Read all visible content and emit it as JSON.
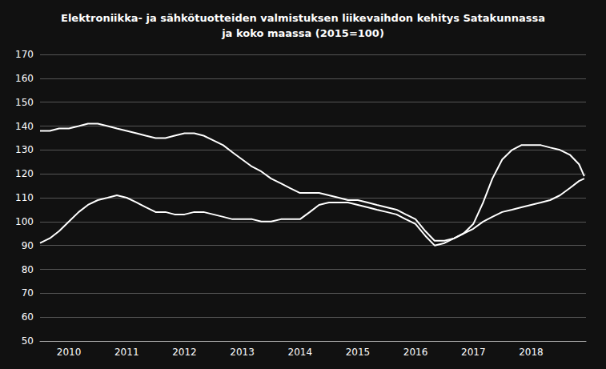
{
  "chart_data": {
    "type": "line",
    "title": "Elektroniikka- ja sähkötuotteiden valmistuksen liikevaihdon kehitys Satakunnassa\nja koko maassa (2015=100)",
    "x": [
      2009.5,
      2009.67,
      2009.83,
      2010.0,
      2010.17,
      2010.33,
      2010.5,
      2010.67,
      2010.83,
      2011.0,
      2011.17,
      2011.33,
      2011.5,
      2011.67,
      2011.83,
      2012.0,
      2012.17,
      2012.33,
      2012.5,
      2012.67,
      2012.83,
      2013.0,
      2013.17,
      2013.33,
      2013.5,
      2013.67,
      2013.83,
      2014.0,
      2014.17,
      2014.33,
      2014.5,
      2014.67,
      2014.83,
      2015.0,
      2015.17,
      2015.33,
      2015.5,
      2015.67,
      2015.83,
      2016.0,
      2016.17,
      2016.33,
      2016.5,
      2016.67,
      2016.83,
      2017.0,
      2017.17,
      2017.33,
      2017.5,
      2017.67,
      2017.83,
      2018.0,
      2018.17,
      2018.33,
      2018.5,
      2018.67,
      2018.83,
      2018.92
    ],
    "series": [
      {
        "color": "#ffffff",
        "values": [
          91,
          93,
          96,
          100,
          104,
          107,
          109,
          110,
          111,
          110,
          108,
          106,
          104,
          104,
          103,
          103,
          104,
          104,
          103,
          102,
          101,
          101,
          101,
          100,
          100,
          101,
          101,
          101,
          104,
          107,
          108,
          108,
          108,
          107,
          106,
          105,
          104,
          103,
          101,
          99,
          94,
          90,
          91,
          93,
          95,
          97,
          100,
          102,
          104,
          105,
          106,
          107,
          108,
          109,
          111,
          114,
          117,
          118
        ]
      },
      {
        "color": "#ffffff",
        "values": [
          138,
          138,
          139,
          139,
          140,
          141,
          141,
          140,
          139,
          138,
          137,
          136,
          135,
          135,
          136,
          137,
          137,
          136,
          134,
          132,
          129,
          126,
          123,
          121,
          118,
          116,
          114,
          112,
          112,
          112,
          111,
          110,
          109,
          109,
          108,
          107,
          106,
          105,
          103,
          101,
          96,
          92,
          92,
          93,
          95,
          99,
          108,
          118,
          126,
          130,
          132,
          132,
          132,
          131,
          130,
          128,
          124,
          119
        ]
      }
    ],
    "xlim": [
      2009.5,
      2018.95
    ],
    "xticks": [
      2010,
      2011,
      2012,
      2013,
      2014,
      2015,
      2016,
      2017,
      2018
    ],
    "ylim": [
      50,
      170
    ],
    "yticks": [
      50,
      60,
      70,
      80,
      90,
      100,
      110,
      120,
      130,
      140,
      150,
      160,
      170
    ],
    "grid": "y"
  }
}
